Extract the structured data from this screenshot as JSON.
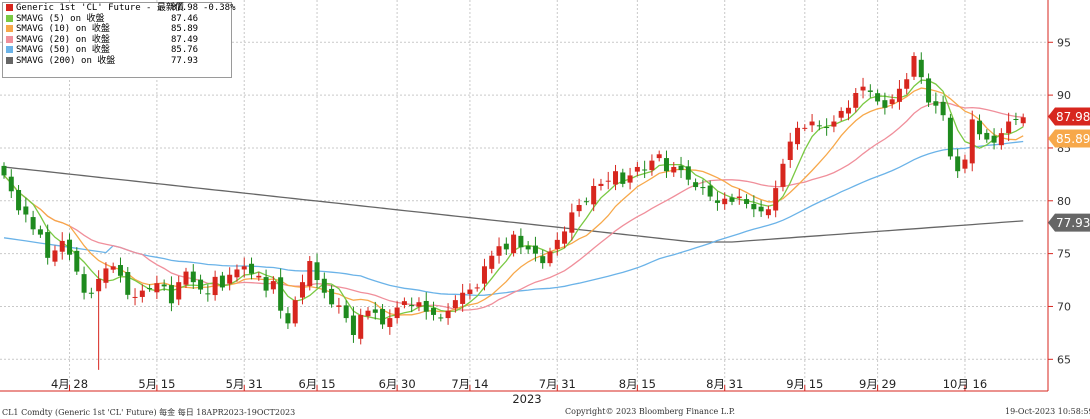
{
  "legend": {
    "items": [
      {
        "label": "Generic 1st 'CL' Future - 最新價",
        "value": "87.98",
        "change": "-0.38%",
        "color": "#d7261e",
        "icon": "candlestick-icon"
      },
      {
        "label": "SMAVG (5)  on 收盤",
        "value": "87.46",
        "color": "#7ac943"
      },
      {
        "label": "SMAVG (10)  on 收盤",
        "value": "85.89",
        "color": "#f7a84a"
      },
      {
        "label": "SMAVG (20)  on 收盤",
        "value": "87.49",
        "color": "#f08f9b"
      },
      {
        "label": "SMAVG (50)  on 收盤",
        "value": "85.76",
        "color": "#6bb3e8"
      },
      {
        "label": "SMAVG (200)  on 收盤",
        "value": "77.93",
        "color": "#666666"
      }
    ]
  },
  "footer": {
    "left": "CL1 Comdty (Generic 1st 'CL' Future) 每金 每日 18APR2023-19OCT2023",
    "center": "Copyright© 2023 Bloomberg Finance L.P.",
    "right": "19-Oct-2023 10:58:59"
  },
  "chart_data": {
    "type": "candlestick",
    "xlabel": "2023",
    "ylim": [
      62,
      99
    ],
    "yticks": [
      65,
      70,
      75,
      80,
      85,
      90,
      95
    ],
    "grid": true,
    "x_ticks": [
      "4月 28",
      "5月 15",
      "5月 31",
      "6月 15",
      "6月 30",
      "7月 14",
      "7月 31",
      "8月 15",
      "8月 31",
      "9月 15",
      "9月 29",
      "10月 16"
    ],
    "up_color": "#d7261e",
    "down_color": "#1e8a1e",
    "last_price_tags": [
      {
        "value": 87.98,
        "label": "87.98",
        "color": "#d7261e"
      },
      {
        "value": 85.89,
        "label": "85.89",
        "color": "#f7a84a"
      },
      {
        "value": 77.93,
        "label": "77.93",
        "color": "#666666"
      }
    ],
    "close": [
      82.4,
      80.9,
      79.1,
      78.7,
      77.3,
      76.8,
      74.6,
      75.3,
      76.2,
      74.9,
      73.3,
      71.3,
      71.2,
      72.6,
      73.6,
      73.8,
      72.9,
      71.1,
      70.9,
      71.5,
      71.7,
      72.2,
      71.9,
      70.3,
      72.3,
      73.3,
      72.3,
      71.6,
      71.2,
      72.8,
      71.8,
      73.0,
      73.5,
      73.8,
      73.1,
      72.9,
      71.5,
      72.4,
      69.6,
      68.4,
      70.6,
      72.3,
      74.3,
      72.5,
      71.3,
      70.2,
      70.1,
      68.9,
      67.3,
      69.2,
      69.6,
      69.4,
      68.3,
      68.9,
      69.9,
      70.5,
      70.1,
      70.4,
      69.5,
      69.2,
      68.9,
      69.6,
      70.6,
      71.3,
      71.6,
      71.8,
      73.8,
      74.8,
      75.7,
      75.4,
      76.8,
      75.6,
      75.4,
      75.0,
      74.1,
      75.2,
      76.3,
      77.1,
      78.9,
      79.6,
      79.9,
      81.4,
      81.6,
      81.9,
      82.8,
      81.6,
      82.4,
      83.2,
      82.9,
      83.8,
      84.4,
      82.8,
      83.2,
      82.9,
      82.0,
      81.3,
      81.2,
      80.4,
      79.8,
      80.2,
      79.9,
      80.4,
      79.7,
      79.2,
      79.0,
      79.2,
      81.2,
      83.5,
      85.6,
      86.9,
      86.9,
      87.5,
      87.1,
      86.9,
      87.5,
      88.5,
      88.8,
      90.2,
      90.8,
      90.3,
      89.4,
      88.8,
      89.6,
      90.6,
      91.5,
      93.7,
      91.7,
      89.3,
      89.0,
      88.1,
      84.2,
      82.8,
      83.9,
      87.7,
      86.3,
      85.8,
      85.5,
      86.4,
      87.5,
      87.7,
      87.9
    ]
  }
}
